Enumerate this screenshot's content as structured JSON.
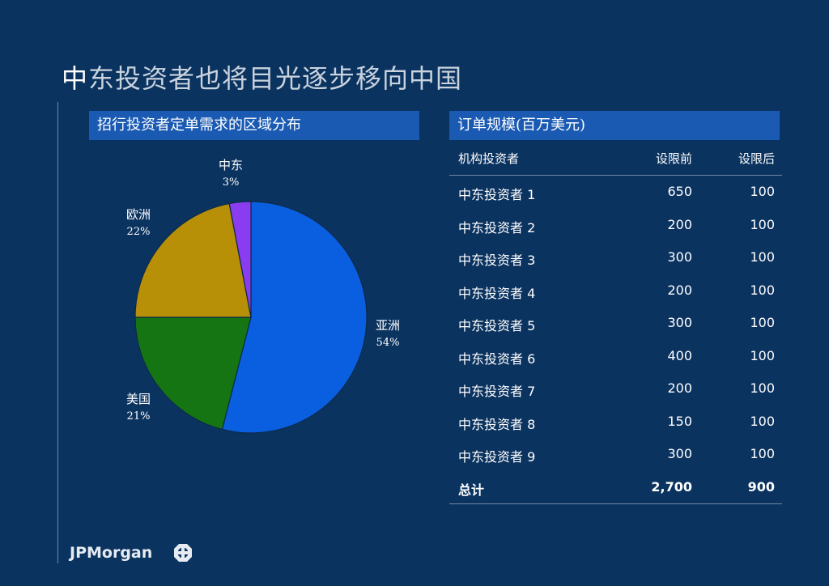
{
  "title": "中东投资者也将目光逐步移向中国",
  "left_panel": {
    "header": "招行投资者定单需求的区域分布"
  },
  "chart_data": {
    "type": "pie",
    "title": "招行投资者定单需求的区域分布",
    "slices": [
      {
        "label": "亚洲",
        "value": 54,
        "display": "54%",
        "color": "#0a5fe0"
      },
      {
        "label": "美国",
        "value": 21,
        "display": "21%",
        "color": "#157513"
      },
      {
        "label": "欧洲",
        "value": 22,
        "display": "22%",
        "color": "#b89008"
      },
      {
        "label": "中东",
        "value": 3,
        "display": "3%",
        "color": "#8a3cf0"
      }
    ],
    "start": "12 o'clock",
    "direction": "clockwise"
  },
  "right_panel": {
    "header": "订单规模(百万美元)",
    "columns": [
      "机构投资者",
      "设限前",
      "设限后"
    ],
    "rows": [
      [
        "中东投资者 1",
        "650",
        "100"
      ],
      [
        "中东投资者 2",
        "200",
        "100"
      ],
      [
        "中东投资者 3",
        "300",
        "100"
      ],
      [
        "中东投资者 4",
        "200",
        "100"
      ],
      [
        "中东投资者 5",
        "300",
        "100"
      ],
      [
        "中东投资者 6",
        "400",
        "100"
      ],
      [
        "中东投资者 7",
        "200",
        "100"
      ],
      [
        "中东投资者 8",
        "150",
        "100"
      ],
      [
        "中东投资者 9",
        "300",
        "100"
      ]
    ],
    "total": [
      "总计",
      "2,700",
      "900"
    ]
  },
  "footer": {
    "logo_text": "JPMorgan",
    "logo_icon": "jpmorgan-octagon-icon"
  }
}
